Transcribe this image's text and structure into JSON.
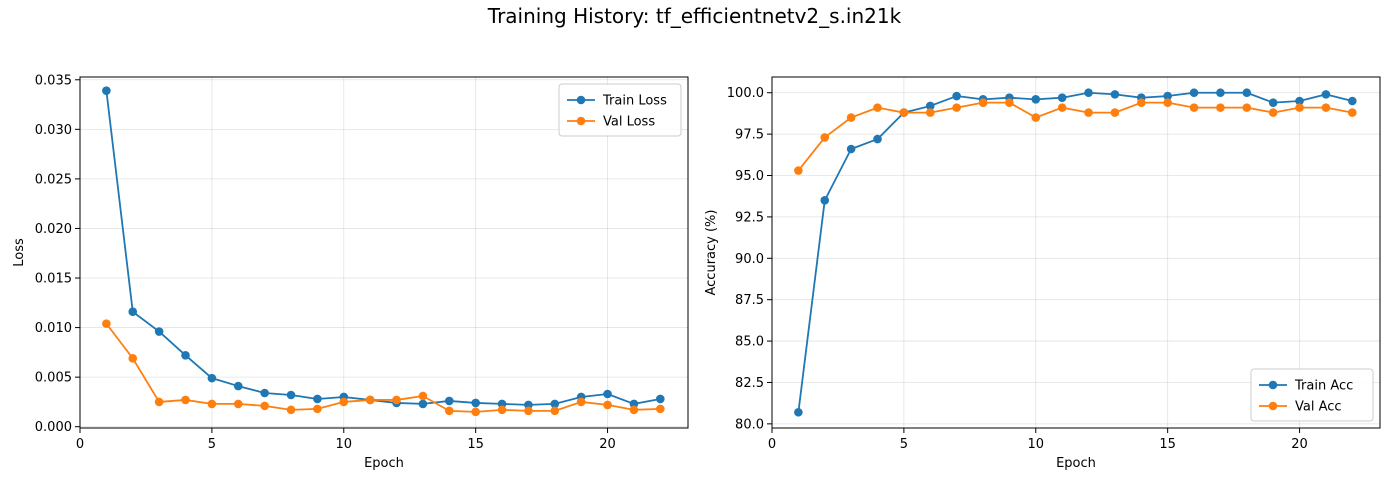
{
  "figure": {
    "suptitle": "Training History: tf_efficientnetv2_s.in21k"
  },
  "chart_data": [
    {
      "type": "line",
      "title": "",
      "xlabel": "Epoch",
      "ylabel": "Loss",
      "xlim": [
        0.0,
        23.05
      ],
      "ylim": [
        -0.00013,
        0.03528
      ],
      "xticks": [
        0,
        5,
        10,
        15,
        20
      ],
      "yticks": [
        0.0,
        0.005,
        0.01,
        0.015,
        0.02,
        0.025,
        0.03,
        0.035
      ],
      "ytick_labels": [
        "0.000",
        "0.005",
        "0.010",
        "0.015",
        "0.020",
        "0.025",
        "0.030",
        "0.035"
      ],
      "grid": true,
      "legend_position": "top-right",
      "x": [
        1,
        2,
        3,
        4,
        5,
        6,
        7,
        8,
        9,
        10,
        11,
        12,
        13,
        14,
        15,
        16,
        17,
        18,
        19,
        20,
        21,
        22
      ],
      "series": [
        {
          "name": "Train Loss",
          "color": "#1f77b4",
          "values": [
            0.0339,
            0.0116,
            0.0096,
            0.0072,
            0.0049,
            0.0041,
            0.0034,
            0.0032,
            0.0028,
            0.003,
            0.0027,
            0.0024,
            0.0023,
            0.0026,
            0.0024,
            0.0023,
            0.0022,
            0.0023,
            0.003,
            0.0033,
            0.0023,
            0.0028
          ]
        },
        {
          "name": "Val Loss",
          "color": "#ff7f0e",
          "values": [
            0.0104,
            0.0069,
            0.0025,
            0.0027,
            0.0023,
            0.0023,
            0.0021,
            0.0017,
            0.0018,
            0.0025,
            0.0027,
            0.0027,
            0.0031,
            0.0016,
            0.0015,
            0.0017,
            0.0016,
            0.0016,
            0.0025,
            0.0022,
            0.0017,
            0.0018
          ]
        }
      ]
    },
    {
      "type": "line",
      "title": "",
      "xlabel": "Epoch",
      "ylabel": "Accuracy (%)",
      "xlim": [
        0.0,
        23.05
      ],
      "ylim": [
        79.75,
        100.95
      ],
      "xticks": [
        0,
        5,
        10,
        15,
        20
      ],
      "yticks": [
        80.0,
        82.5,
        85.0,
        87.5,
        90.0,
        92.5,
        95.0,
        97.5,
        100.0
      ],
      "ytick_labels": [
        "80.0",
        "82.5",
        "85.0",
        "87.5",
        "90.0",
        "92.5",
        "95.0",
        "97.5",
        "100.0"
      ],
      "grid": true,
      "legend_position": "bottom-right",
      "x": [
        1,
        2,
        3,
        4,
        5,
        6,
        7,
        8,
        9,
        10,
        11,
        12,
        13,
        14,
        15,
        16,
        17,
        18,
        19,
        20,
        21,
        22
      ],
      "series": [
        {
          "name": "Train Acc",
          "color": "#1f77b4",
          "values": [
            80.7,
            93.5,
            96.6,
            97.2,
            98.8,
            99.2,
            99.8,
            99.6,
            99.7,
            99.6,
            99.7,
            100.0,
            99.9,
            99.7,
            99.8,
            100.0,
            100.0,
            100.0,
            99.4,
            99.5,
            99.9,
            99.5
          ]
        },
        {
          "name": "Val Acc",
          "color": "#ff7f0e",
          "values": [
            95.3,
            97.3,
            98.5,
            99.1,
            98.8,
            98.8,
            99.1,
            99.4,
            99.4,
            98.5,
            99.1,
            98.8,
            98.8,
            99.4,
            99.4,
            99.1,
            99.1,
            99.1,
            98.8,
            99.1,
            99.1,
            98.8
          ]
        }
      ]
    }
  ]
}
